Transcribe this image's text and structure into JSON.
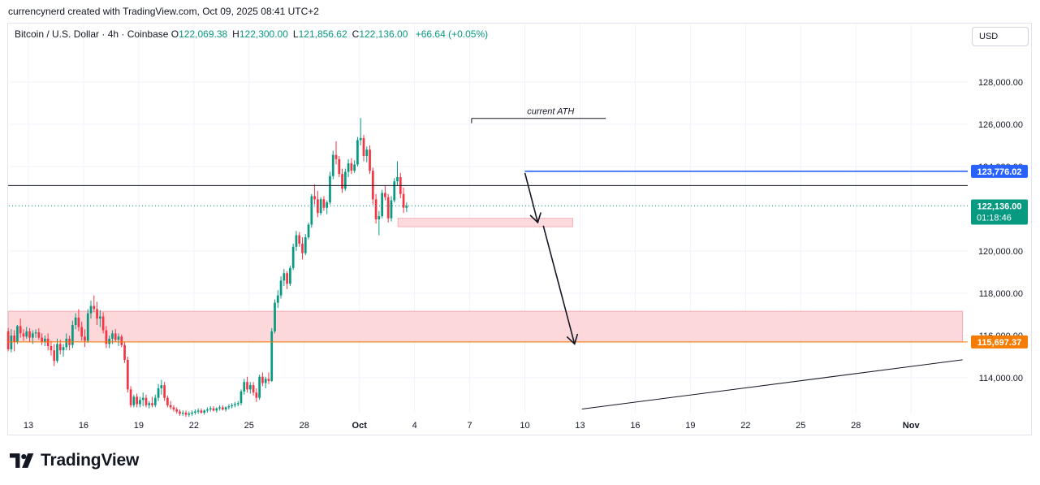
{
  "header": {
    "credit": "currencynerd created with TradingView.com, Oct 09, 2025 08:41 UTC+2",
    "symbol": "Bitcoin / U.S. Dollar · 4h · Coinbase",
    "ohlc": [
      {
        "k": "O",
        "v": "122,069.38"
      },
      {
        "k": "H",
        "v": "122,300.00"
      },
      {
        "k": "L",
        "v": "121,856.62"
      },
      {
        "k": "C",
        "v": "122,136.00"
      }
    ],
    "change": "+66.64 (+0.05%)",
    "currency_button": "USD"
  },
  "brand": {
    "name": "TradingView"
  },
  "colors": {
    "up": "#089981",
    "down": "#f23645",
    "zone_fill": "#fcd6da",
    "zone_border": "#f0a8b0",
    "blue_line": "#2962ff",
    "orange_line": "#f57c00",
    "grid": "#f0f3fa",
    "text": "#131722"
  },
  "chart_data": {
    "type": "candlestick",
    "x_ticks": [
      {
        "label": "13",
        "d": 13
      },
      {
        "label": "16",
        "d": 16
      },
      {
        "label": "19",
        "d": 19
      },
      {
        "label": "22",
        "d": 22
      },
      {
        "label": "25",
        "d": 25
      },
      {
        "label": "28",
        "d": 28
      },
      {
        "label": "Oct",
        "d": 31
      },
      {
        "label": "4",
        "d": 34
      },
      {
        "label": "7",
        "d": 37
      },
      {
        "label": "10",
        "d": 40
      },
      {
        "label": "13",
        "d": 43
      },
      {
        "label": "16",
        "d": 46
      },
      {
        "label": "19",
        "d": 49
      },
      {
        "label": "22",
        "d": 52
      },
      {
        "label": "25",
        "d": 55
      },
      {
        "label": "28",
        "d": 58
      },
      {
        "label": "Nov",
        "d": 61
      }
    ],
    "y_ticks": [
      {
        "label": "128,000.00",
        "v": 128000
      },
      {
        "label": "126,000.00",
        "v": 126000
      },
      {
        "label": "124,000.00",
        "v": 124000
      },
      {
        "label": "120,000.00",
        "v": 120000
      },
      {
        "label": "118,000.00",
        "v": 118000
      },
      {
        "label": "116,000.00",
        "v": 116000
      },
      {
        "label": "114,000.00",
        "v": 114000
      }
    ],
    "ylim": [
      112500,
      130500
    ],
    "price_labels": [
      {
        "text": "123,776.02",
        "v": 123776.02,
        "color": "#2962ff"
      },
      {
        "text": "115,697.37",
        "v": 115697.37,
        "color": "#f57c00"
      }
    ],
    "last_price": {
      "text": "122,136.00",
      "countdown": "01:18:46",
      "v": 122136,
      "color": "#089981"
    },
    "horizontal_lines": [
      {
        "v": 123776.02,
        "color": "#2962ff",
        "from_d": 40.0
      },
      {
        "v": 115697.37,
        "color": "#f57c00",
        "from_d": 11.9
      },
      {
        "v": 123100,
        "color": "#131722",
        "from_d": 11.9
      }
    ],
    "zones": [
      {
        "from_d": 11.9,
        "to_d": 63.8,
        "top": 117150,
        "bottom": 115700
      },
      {
        "from_d": 33.1,
        "to_d": 42.6,
        "top": 121550,
        "bottom": 121150
      }
    ],
    "annotations": [
      {
        "text": "current ATH",
        "d": 41.4,
        "v": 126480
      }
    ],
    "ath_line": {
      "from_d": 37.1,
      "to_d": 44.4,
      "v": 126280
    },
    "trend_line": {
      "from_d": 43.1,
      "from_v": 112520,
      "to_d": 63.8,
      "to_v": 114850
    },
    "arrows": [
      {
        "from_d": 40.0,
        "from_v": 123700,
        "to_d": 40.7,
        "to_v": 121350
      },
      {
        "from_d": 41.0,
        "from_v": 121200,
        "to_d": 42.7,
        "to_v": 115600
      }
    ],
    "candles_4h": [
      [
        116200,
        116350,
        115250,
        115350
      ],
      [
        115350,
        116300,
        115200,
        116000
      ],
      [
        116000,
        116250,
        115250,
        115700
      ],
      [
        115700,
        116500,
        115600,
        116450
      ],
      [
        116450,
        116800,
        115900,
        116100
      ],
      [
        116100,
        116300,
        115750,
        115950
      ],
      [
        115950,
        116400,
        115850,
        116200
      ],
      [
        116200,
        116350,
        115700,
        115900
      ],
      [
        115900,
        116250,
        115600,
        116100
      ],
      [
        116100,
        116300,
        115900,
        116150
      ],
      [
        116150,
        116350,
        115800,
        115900
      ],
      [
        115900,
        116100,
        115550,
        115700
      ],
      [
        115700,
        116000,
        115500,
        115850
      ],
      [
        115850,
        116100,
        115300,
        115500
      ],
      [
        115500,
        115750,
        115050,
        115300
      ],
      [
        115300,
        115600,
        114550,
        114800
      ],
      [
        114800,
        115850,
        114700,
        115600
      ],
      [
        115600,
        115800,
        115100,
        115300
      ],
      [
        115300,
        115600,
        115000,
        115450
      ],
      [
        115450,
        116100,
        115300,
        115850
      ],
      [
        115850,
        116000,
        115300,
        115550
      ],
      [
        115550,
        116700,
        115400,
        116500
      ],
      [
        116500,
        117050,
        116300,
        116850
      ],
      [
        116850,
        117250,
        116200,
        116400
      ],
      [
        116400,
        116650,
        115750,
        115950
      ],
      [
        115950,
        116300,
        115450,
        115750
      ],
      [
        115750,
        117250,
        115650,
        117050
      ],
      [
        117050,
        117650,
        116800,
        117400
      ],
      [
        117400,
        117900,
        117100,
        117250
      ],
      [
        117250,
        117600,
        116500,
        116800
      ],
      [
        116800,
        117200,
        116400,
        116900
      ],
      [
        116900,
        117100,
        116100,
        116250
      ],
      [
        116250,
        116450,
        115400,
        115600
      ],
      [
        115600,
        116000,
        115400,
        115850
      ],
      [
        115850,
        116250,
        115600,
        116100
      ],
      [
        116100,
        116300,
        115700,
        115800
      ],
      [
        115800,
        116100,
        115500,
        115950
      ],
      [
        115950,
        116050,
        115450,
        115550
      ],
      [
        115550,
        115700,
        114700,
        114850
      ],
      [
        114850,
        115000,
        113300,
        113450
      ],
      [
        113450,
        113600,
        112600,
        112700
      ],
      [
        112700,
        113200,
        112600,
        113100
      ],
      [
        113100,
        113250,
        112600,
        112750
      ],
      [
        112750,
        113100,
        112600,
        112950
      ],
      [
        112950,
        113300,
        112650,
        113050
      ],
      [
        113050,
        113200,
        112600,
        112700
      ],
      [
        112700,
        112900,
        112550,
        112800
      ],
      [
        112800,
        113100,
        112600,
        112700
      ],
      [
        112700,
        113200,
        112600,
        113050
      ],
      [
        113050,
        113700,
        112900,
        113500
      ],
      [
        113500,
        113900,
        113200,
        113650
      ],
      [
        113650,
        113800,
        112900,
        113050
      ],
      [
        113050,
        113150,
        112600,
        112700
      ],
      [
        112700,
        112900,
        112500,
        112600
      ],
      [
        112600,
        112700,
        112400,
        112500
      ],
      [
        112500,
        112600,
        112300,
        112400
      ],
      [
        112400,
        112500,
        112200,
        112300
      ],
      [
        112300,
        112450,
        112200,
        112350
      ],
      [
        112350,
        112450,
        112150,
        112250
      ],
      [
        112250,
        112400,
        112150,
        112300
      ],
      [
        112300,
        112450,
        112200,
        112350
      ],
      [
        112350,
        112500,
        112250,
        112400
      ],
      [
        112400,
        112550,
        112300,
        112450
      ],
      [
        112450,
        112550,
        112300,
        112350
      ],
      [
        112350,
        112500,
        112250,
        112450
      ],
      [
        112450,
        112600,
        112350,
        112500
      ],
      [
        112500,
        112650,
        112400,
        112550
      ],
      [
        112550,
        112650,
        112400,
        112450
      ],
      [
        112450,
        112600,
        112350,
        112550
      ],
      [
        112550,
        112700,
        112450,
        112600
      ],
      [
        112600,
        112700,
        112450,
        112500
      ],
      [
        112500,
        112650,
        112400,
        112600
      ],
      [
        112600,
        112750,
        112500,
        112650
      ],
      [
        112650,
        112800,
        112550,
        112700
      ],
      [
        112700,
        112850,
        112600,
        112750
      ],
      [
        112750,
        112900,
        112650,
        112800
      ],
      [
        112800,
        113450,
        112700,
        113350
      ],
      [
        113350,
        113950,
        113200,
        113800
      ],
      [
        113800,
        114050,
        113300,
        113450
      ],
      [
        113450,
        113800,
        113250,
        113650
      ],
      [
        113650,
        113800,
        113150,
        113300
      ],
      [
        113300,
        113500,
        112850,
        113050
      ],
      [
        113050,
        114150,
        112950,
        114050
      ],
      [
        114050,
        114250,
        113600,
        113750
      ],
      [
        113750,
        114050,
        113500,
        113950
      ],
      [
        113950,
        114250,
        113700,
        113850
      ],
      [
        113850,
        116350,
        113800,
        116200
      ],
      [
        116200,
        117700,
        116100,
        117550
      ],
      [
        117550,
        118150,
        117300,
        117900
      ],
      [
        117900,
        118800,
        117750,
        118600
      ],
      [
        118600,
        119150,
        118350,
        118950
      ],
      [
        118950,
        119050,
        118200,
        118450
      ],
      [
        118450,
        119300,
        118350,
        119200
      ],
      [
        119200,
        120350,
        119100,
        120200
      ],
      [
        120200,
        120950,
        120000,
        120750
      ],
      [
        120750,
        120900,
        120200,
        120350
      ],
      [
        120350,
        120650,
        119600,
        119900
      ],
      [
        119900,
        120800,
        119800,
        120650
      ],
      [
        120650,
        121350,
        120550,
        121250
      ],
      [
        121250,
        122700,
        121100,
        122600
      ],
      [
        122600,
        123150,
        122200,
        122450
      ],
      [
        122450,
        122850,
        121600,
        121800
      ],
      [
        121800,
        122550,
        121700,
        122450
      ],
      [
        122450,
        122600,
        121900,
        122050
      ],
      [
        122050,
        122400,
        121750,
        122300
      ],
      [
        122300,
        123750,
        122200,
        123550
      ],
      [
        123550,
        124750,
        123400,
        124550
      ],
      [
        124550,
        125200,
        124100,
        124350
      ],
      [
        124350,
        124500,
        123500,
        123650
      ],
      [
        123650,
        123900,
        122750,
        122950
      ],
      [
        122950,
        123900,
        122850,
        123750
      ],
      [
        123750,
        124350,
        123500,
        124150
      ],
      [
        124150,
        124400,
        123650,
        123800
      ],
      [
        123800,
        124300,
        123700,
        124100
      ],
      [
        124100,
        125400,
        124000,
        125250
      ],
      [
        125250,
        126300,
        125000,
        125350
      ],
      [
        125350,
        125500,
        124250,
        124500
      ],
      [
        124500,
        124950,
        124200,
        124800
      ],
      [
        124800,
        125000,
        123650,
        123800
      ],
      [
        123800,
        123950,
        122200,
        122450
      ],
      [
        122450,
        122700,
        121300,
        121500
      ],
      [
        121500,
        121900,
        120750,
        121650
      ],
      [
        121650,
        122900,
        121550,
        122750
      ],
      [
        122750,
        123100,
        122400,
        122550
      ],
      [
        122550,
        122700,
        121350,
        121550
      ],
      [
        121550,
        122600,
        121400,
        122400
      ],
      [
        122400,
        123450,
        122300,
        123300
      ],
      [
        123300,
        124250,
        123100,
        123500
      ],
      [
        123500,
        123700,
        122500,
        122700
      ],
      [
        122700,
        123000,
        121800,
        122050
      ],
      [
        122050,
        122300,
        121850,
        122136
      ]
    ]
  }
}
